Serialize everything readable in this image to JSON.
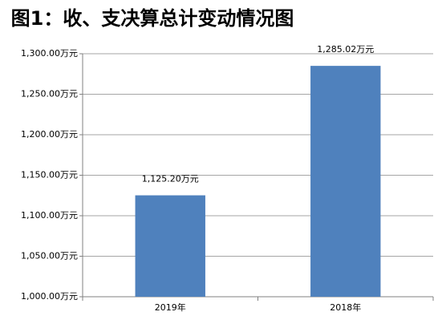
{
  "chart_data": {
    "type": "bar",
    "title": "图1：收、支决算总计变动情况图",
    "categories": [
      "2019年",
      "2018年"
    ],
    "values": [
      1125.2,
      1285.02
    ],
    "value_labels": [
      "1,125.20万元",
      "1,285.02万元"
    ],
    "color": "#4f81bd",
    "ylim": [
      1000,
      1300
    ],
    "yticks": [
      {
        "value": 1000,
        "label": "1,000.00万元"
      },
      {
        "value": 1050,
        "label": "1,050.00万元"
      },
      {
        "value": 1100,
        "label": "1,100.00万元"
      },
      {
        "value": 1150,
        "label": "1,150.00万元"
      },
      {
        "value": 1200,
        "label": "1,200.00万元"
      },
      {
        "value": 1250,
        "label": "1,250.00万元"
      },
      {
        "value": 1300,
        "label": "1,300.00万元"
      }
    ],
    "grid": true
  }
}
